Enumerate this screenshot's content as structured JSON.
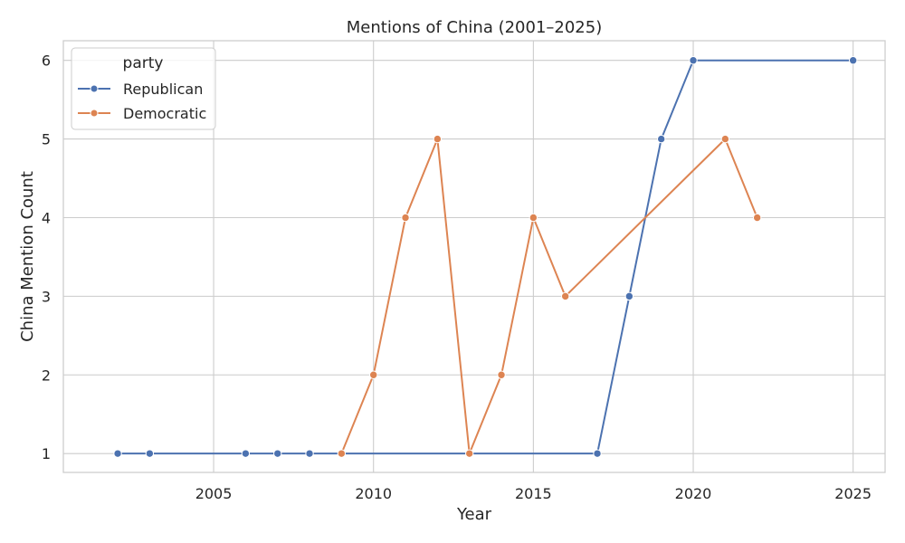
{
  "chart_data": {
    "type": "line",
    "title": "Mentions of China (2001–2025)",
    "xlabel": "Year",
    "ylabel": "China Mention Count",
    "xlim": [
      2000.3,
      2026.0
    ],
    "ylim": [
      0.76,
      6.25
    ],
    "x_ticks": [
      2005,
      2010,
      2015,
      2020,
      2025
    ],
    "y_ticks": [
      1,
      2,
      3,
      4,
      5,
      6
    ],
    "grid": true,
    "legend": {
      "title": "party",
      "placement": "top-left",
      "entries": [
        "Republican",
        "Democratic"
      ]
    },
    "series": [
      {
        "name": "Republican",
        "color": "#4c72b0",
        "x": [
          2002,
          2003,
          2006,
          2007,
          2008,
          2017,
          2018,
          2019,
          2020,
          2025
        ],
        "y": [
          1,
          1,
          1,
          1,
          1,
          1,
          3,
          5,
          6,
          6
        ]
      },
      {
        "name": "Democratic",
        "color": "#dd8452",
        "x": [
          2009,
          2010,
          2011,
          2012,
          2013,
          2014,
          2015,
          2016,
          2021,
          2022
        ],
        "y": [
          1,
          2,
          4,
          5,
          1,
          2,
          4,
          3,
          5,
          4
        ]
      }
    ]
  }
}
